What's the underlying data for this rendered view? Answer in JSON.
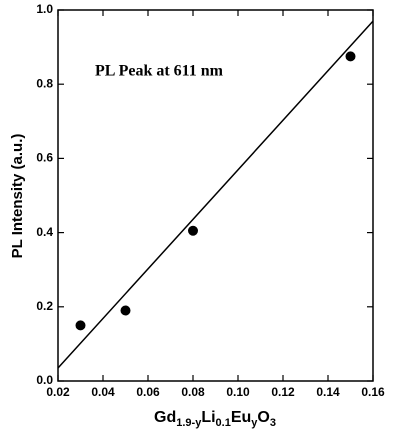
{
  "chart_data": {
    "type": "scatter",
    "annotation": "PL Peak at 611 nm",
    "y_label": "PL Intensity (a.u.)",
    "x_label_parts": [
      "Gd",
      "1.9-y",
      "Li",
      "0.1",
      "Eu",
      "y",
      "O",
      "3"
    ],
    "series": [
      {
        "mode": "markers",
        "color": "#000000",
        "x": [
          0.03,
          0.05,
          0.08,
          0.15
        ],
        "values": [
          0.15,
          0.19,
          0.405,
          0.875
        ]
      },
      {
        "mode": "line",
        "color": "#000000",
        "x": [
          0.02,
          0.16
        ],
        "values": [
          0.035,
          0.97
        ]
      }
    ],
    "xlim": [
      0.02,
      0.16
    ],
    "xticks": [
      0.02,
      0.04,
      0.06,
      0.08,
      {
        "value": 0.1,
        "label": "0.10"
      },
      0.12,
      0.14,
      0.16
    ],
    "ylim": [
      0,
      1
    ],
    "yticks": [
      {
        "value": 0,
        "label": "0.0"
      },
      0.2,
      0.4,
      0.6,
      0.8,
      {
        "value": 1,
        "label": "1.0"
      }
    ]
  }
}
